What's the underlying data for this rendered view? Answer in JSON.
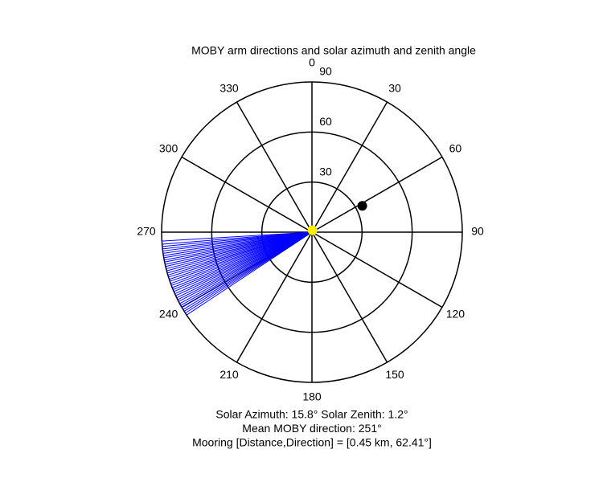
{
  "chart_data": {
    "type": "polar",
    "title": "MOBY arm directions and solar azimuth and zenith angle",
    "rlim": [
      0,
      90
    ],
    "rticks": [
      30,
      60,
      90
    ],
    "angle_ticks": [
      0,
      30,
      60,
      90,
      120,
      150,
      180,
      210,
      240,
      270,
      300,
      330
    ],
    "series": [
      {
        "name": "MOBY arm directions",
        "color": "#0000ff",
        "values": [
          236.5,
          237.4,
          238.2,
          239.0,
          239.9,
          240.8,
          241.6,
          242.5,
          243.3,
          244.1,
          245.0,
          245.8,
          246.7,
          247.5,
          248.3,
          249.2,
          250.0,
          250.9,
          251.7,
          252.6,
          253.4,
          254.2,
          255.1,
          255.9,
          256.8,
          257.6,
          258.5,
          259.3,
          260.2,
          261.0,
          261.9,
          262.8,
          263.6,
          264.5,
          265.4,
          266.6
        ]
      },
      {
        "name": "Mooring",
        "color": "#000000",
        "direction": 62.41,
        "r": 34
      },
      {
        "name": "Sun",
        "color": "#ffee00",
        "direction": 15.8,
        "r": 1.2
      }
    ],
    "notes": [
      "Solar Azimuth: 15.8°   Solar Zenith: 1.2°",
      "Mean MOBY direction: 251°",
      "Mooring [Distance,Direction] = [0.45 km, 62.41°]"
    ]
  }
}
